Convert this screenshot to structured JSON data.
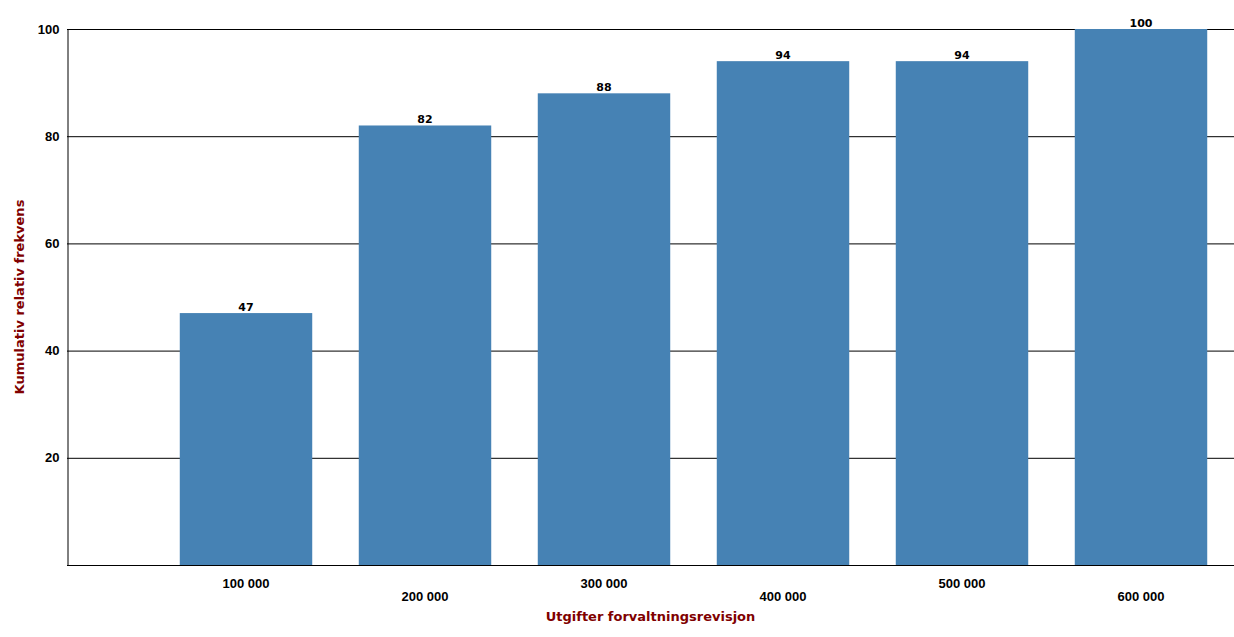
{
  "chart_data": {
    "type": "bar",
    "x_label": "Utgifter forvaltningsrevisjon",
    "y_label": "Kumulativ relativ frekvens",
    "categories": [
      "100 000",
      "200 000",
      "300 000",
      "400 000",
      "500 000",
      "600 000"
    ],
    "values": [
      47,
      82,
      88,
      94,
      94,
      100
    ],
    "color": "#4682b4",
    "ylim": [
      0,
      100
    ],
    "yticks": [
      20,
      40,
      60,
      80,
      100
    ],
    "grid": true,
    "data_labels": true
  }
}
